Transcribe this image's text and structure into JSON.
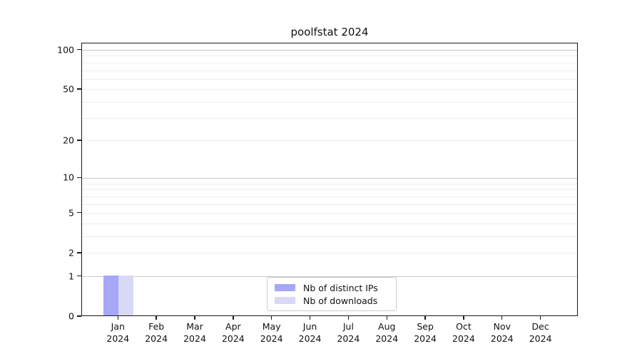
{
  "chart_data": {
    "type": "bar",
    "title": "poolfstat 2024",
    "categories": [
      "Jan",
      "Feb",
      "Mar",
      "Apr",
      "May",
      "Jun",
      "Jul",
      "Aug",
      "Sep",
      "Oct",
      "Nov",
      "Dec"
    ],
    "year_label": "2024",
    "series": [
      {
        "name": "Nb of distinct IPs",
        "color": "#a7a7f7",
        "values": [
          1,
          0,
          0,
          0,
          0,
          0,
          0,
          0,
          0,
          0,
          0,
          0
        ]
      },
      {
        "name": "Nb of downloads",
        "color": "#d8d8f7",
        "values": [
          1,
          0,
          0,
          0,
          0,
          0,
          0,
          0,
          0,
          0,
          0,
          0
        ]
      }
    ],
    "yscale": "log1p",
    "yticks": [
      0,
      1,
      2,
      5,
      10,
      20,
      50,
      100
    ],
    "minor_gridlines": [
      2,
      3,
      4,
      5,
      6,
      7,
      8,
      9,
      20,
      30,
      40,
      50,
      60,
      70,
      80,
      90
    ],
    "major_gridlines": [
      1,
      10,
      100
    ],
    "ylim": [
      0,
      112
    ],
    "grid": "horizontal",
    "legend_position": "lower center",
    "colors": {
      "major_grid": "#c8c8c8",
      "minor_grid": "#ededed",
      "spine": "#1a1a1a"
    }
  }
}
